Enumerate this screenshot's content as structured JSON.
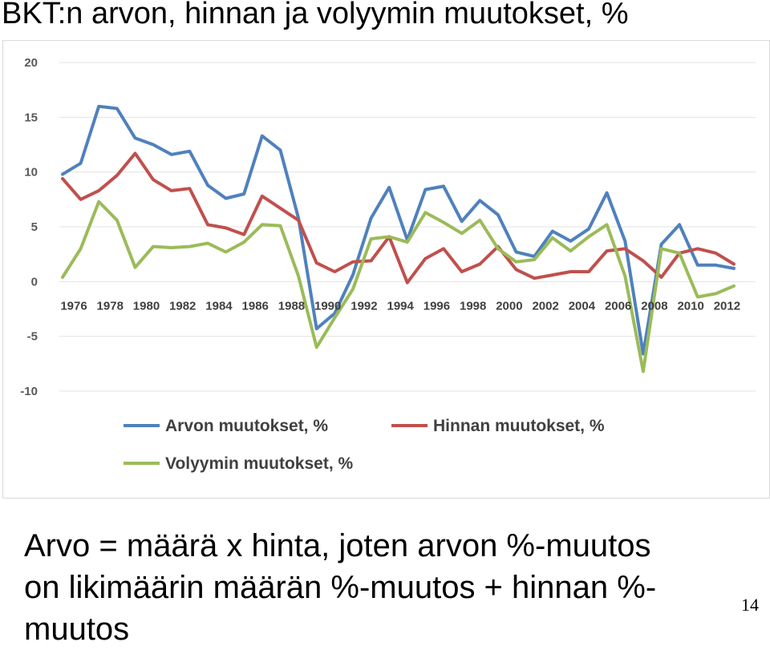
{
  "title": "BKT:n arvon, hinnan ja volyymin muutokset, %",
  "caption": "Arvo = määrä x hinta, joten arvon %-muutos on likimäärin määrän %-muutos + hinnan %-muutos",
  "page_number": "14",
  "chart_data": {
    "type": "line",
    "title": "",
    "xlabel": "",
    "ylabel": "",
    "ylim": [
      -10,
      20
    ],
    "yticks": [
      20,
      15,
      10,
      5,
      0,
      -5,
      -10
    ],
    "x": [
      1976,
      1977,
      1978,
      1979,
      1980,
      1981,
      1982,
      1983,
      1984,
      1985,
      1986,
      1987,
      1988,
      1989,
      1990,
      1991,
      1992,
      1993,
      1994,
      1995,
      1996,
      1997,
      1998,
      1999,
      2000,
      2001,
      2002,
      2003,
      2004,
      2005,
      2006,
      2007,
      2008,
      2009,
      2010,
      2011,
      2012,
      2013
    ],
    "xtick_labels": [
      "1976",
      "1978",
      "1980",
      "1982",
      "1984",
      "1986",
      "1988",
      "1990",
      "1992",
      "1994",
      "1996",
      "1998",
      "2000",
      "2002",
      "2004",
      "2006",
      "2008",
      "2010",
      "2012"
    ],
    "legend_position": "bottom",
    "grid": true,
    "series": [
      {
        "name": "Arvon muutokset, %",
        "color": "#4f81bd",
        "values": [
          9.8,
          10.8,
          16.0,
          15.8,
          13.1,
          12.5,
          11.6,
          11.9,
          8.8,
          7.6,
          8.0,
          13.3,
          12.0,
          5.8,
          -4.3,
          -2.9,
          0.6,
          5.8,
          8.6,
          3.8,
          8.4,
          8.7,
          5.5,
          7.4,
          6.1,
          2.7,
          2.3,
          4.6,
          3.7,
          4.8,
          8.1,
          3.7,
          -6.6,
          3.4,
          5.2,
          1.5,
          1.5,
          1.2
        ]
      },
      {
        "name": "Hinnan muutokset, %",
        "color": "#c0504d",
        "values": [
          9.4,
          7.5,
          8.3,
          9.7,
          11.7,
          9.3,
          8.3,
          8.5,
          5.2,
          4.9,
          4.3,
          7.8,
          6.7,
          5.6,
          1.7,
          0.9,
          1.8,
          1.9,
          4.1,
          -0.1,
          2.1,
          3.0,
          0.9,
          1.6,
          3.2,
          1.1,
          0.3,
          0.6,
          0.9,
          0.9,
          2.8,
          3.0,
          1.9,
          0.4,
          2.6,
          3.0,
          2.6,
          1.6
        ]
      },
      {
        "name": "Volyymin muutokset, %",
        "color": "#9bbb59",
        "values": [
          0.4,
          3.0,
          7.3,
          5.6,
          1.3,
          3.2,
          3.1,
          3.2,
          3.5,
          2.7,
          3.6,
          5.2,
          5.1,
          0.5,
          -6.0,
          -3.3,
          -0.7,
          3.9,
          4.1,
          3.6,
          6.3,
          5.4,
          4.4,
          5.6,
          3.0,
          1.8,
          2.0,
          4.0,
          2.8,
          4.1,
          5.2,
          0.5,
          -8.2,
          3.0,
          2.6,
          -1.4,
          -1.1,
          -0.4
        ]
      }
    ]
  }
}
